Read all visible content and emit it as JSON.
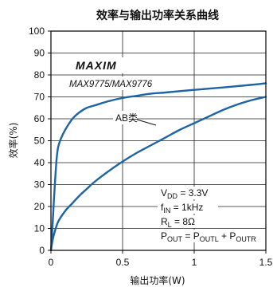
{
  "chart_data": {
    "type": "line",
    "title": "效率与输出功率关系曲线",
    "xlabel": "输出功率(W)",
    "ylabel": "效率(%)",
    "xlim": [
      0,
      1.5
    ],
    "ylim": [
      0,
      100
    ],
    "x_ticks": [
      0,
      0.5,
      1,
      1.5
    ],
    "x_tick_labels": [
      "0",
      "0.5",
      "1",
      "1.5"
    ],
    "y_ticks": [
      0,
      10,
      20,
      30,
      40,
      50,
      60,
      70,
      80,
      90,
      100
    ],
    "y_tick_labels": [
      "0",
      "10",
      "20",
      "30",
      "40",
      "50",
      "60",
      "70",
      "80",
      "90",
      "100"
    ],
    "grid": true,
    "brand_logo": "MAXIM",
    "model_label": "MAX9775/MAX9776",
    "series": [
      {
        "name": "",
        "color": "#1c63a8",
        "x": [
          0.005,
          0.01,
          0.02,
          0.03,
          0.04,
          0.05,
          0.07,
          0.1,
          0.15,
          0.2,
          0.25,
          0.3,
          0.4,
          0.5,
          0.6,
          0.7,
          0.8,
          1.0,
          1.2,
          1.4,
          1.5
        ],
        "y": [
          4,
          10,
          22,
          33,
          42,
          47,
          51,
          55,
          60,
          63,
          65,
          66,
          68,
          69.5,
          70.5,
          71.5,
          72,
          73.2,
          74.3,
          75.5,
          76.2
        ]
      },
      {
        "name": "AB类",
        "color": "#1c63a8",
        "x": [
          0.005,
          0.01,
          0.02,
          0.05,
          0.1,
          0.15,
          0.2,
          0.25,
          0.3,
          0.4,
          0.5,
          0.6,
          0.7,
          0.8,
          0.9,
          1.0,
          1.1,
          1.2,
          1.3,
          1.4,
          1.5
        ],
        "y": [
          2,
          4,
          7,
          13,
          18,
          21.5,
          25,
          28,
          31,
          36,
          40.5,
          44.5,
          48,
          51.5,
          55,
          58,
          61,
          64,
          66.5,
          68.5,
          70
        ]
      }
    ],
    "annotations": {
      "vdd": [
        "V",
        "DD",
        " = 3.3V"
      ],
      "fin": [
        "f",
        "IN",
        " = 1kHz"
      ],
      "rl": [
        "R",
        "L",
        " = 8Ω"
      ],
      "pout": [
        "P",
        "OUT",
        " = P",
        "OUTL",
        " + P",
        "OUTR"
      ]
    }
  }
}
